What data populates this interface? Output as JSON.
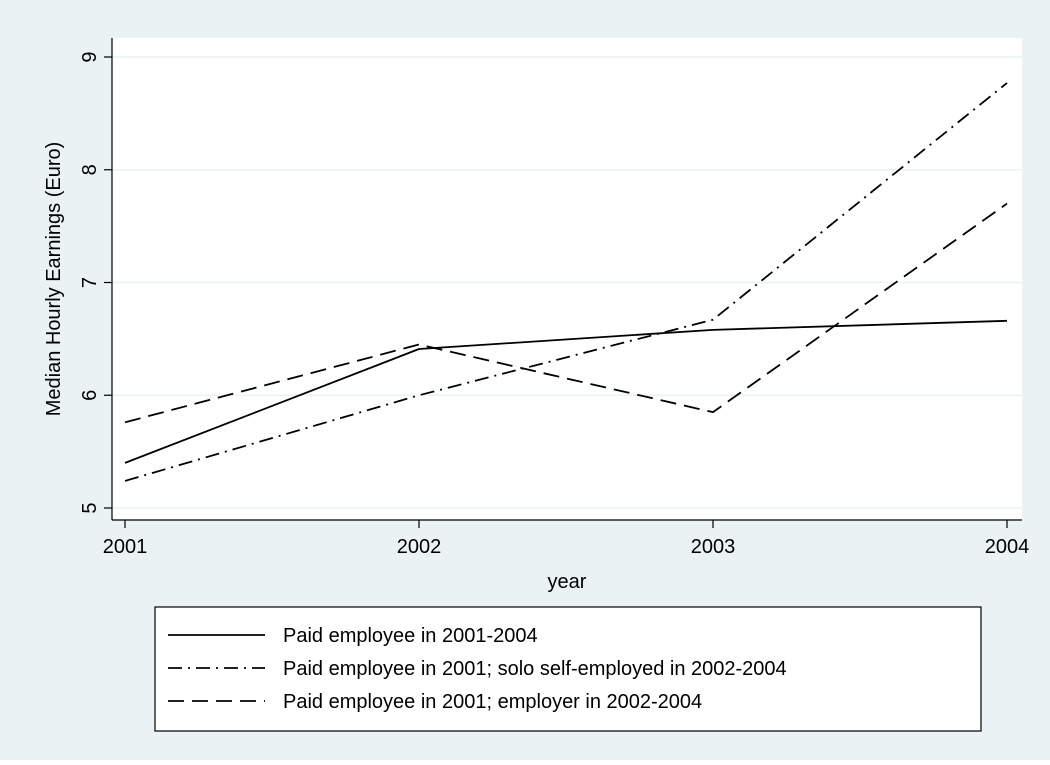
{
  "chart_data": {
    "type": "line",
    "title": "",
    "xlabel": "year",
    "ylabel": "Median Hourly Earnings (Euro)",
    "x": [
      2001,
      2002,
      2003,
      2004
    ],
    "x_tick_labels": [
      "2001",
      "2002",
      "2003",
      "2004"
    ],
    "y_ticks": [
      5,
      6,
      7,
      8,
      9
    ],
    "y_tick_labels": [
      "5",
      "6",
      "7",
      "8",
      "9"
    ],
    "xlim": [
      2001,
      2004
    ],
    "ylim": [
      5,
      9
    ],
    "grid": "horizontal",
    "legend_position": "bottom",
    "series": [
      {
        "name": "Paid employee in 2001-2004",
        "style": "solid",
        "values": [
          5.4,
          6.41,
          6.58,
          6.66
        ]
      },
      {
        "name": "Paid employee in 2001; solo self-employed in 2002-2004",
        "style": "dash-dot",
        "values": [
          5.24,
          6.0,
          6.67,
          8.77
        ]
      },
      {
        "name": "Paid employee in 2001; employer in 2002-2004",
        "style": "dashed",
        "values": [
          5.76,
          6.45,
          5.85,
          7.7
        ]
      }
    ],
    "colors": {
      "outer_background": "#eaf2f3",
      "plot_background": "#ffffff",
      "grid": "#eaf2f3",
      "line": "#000000"
    }
  }
}
